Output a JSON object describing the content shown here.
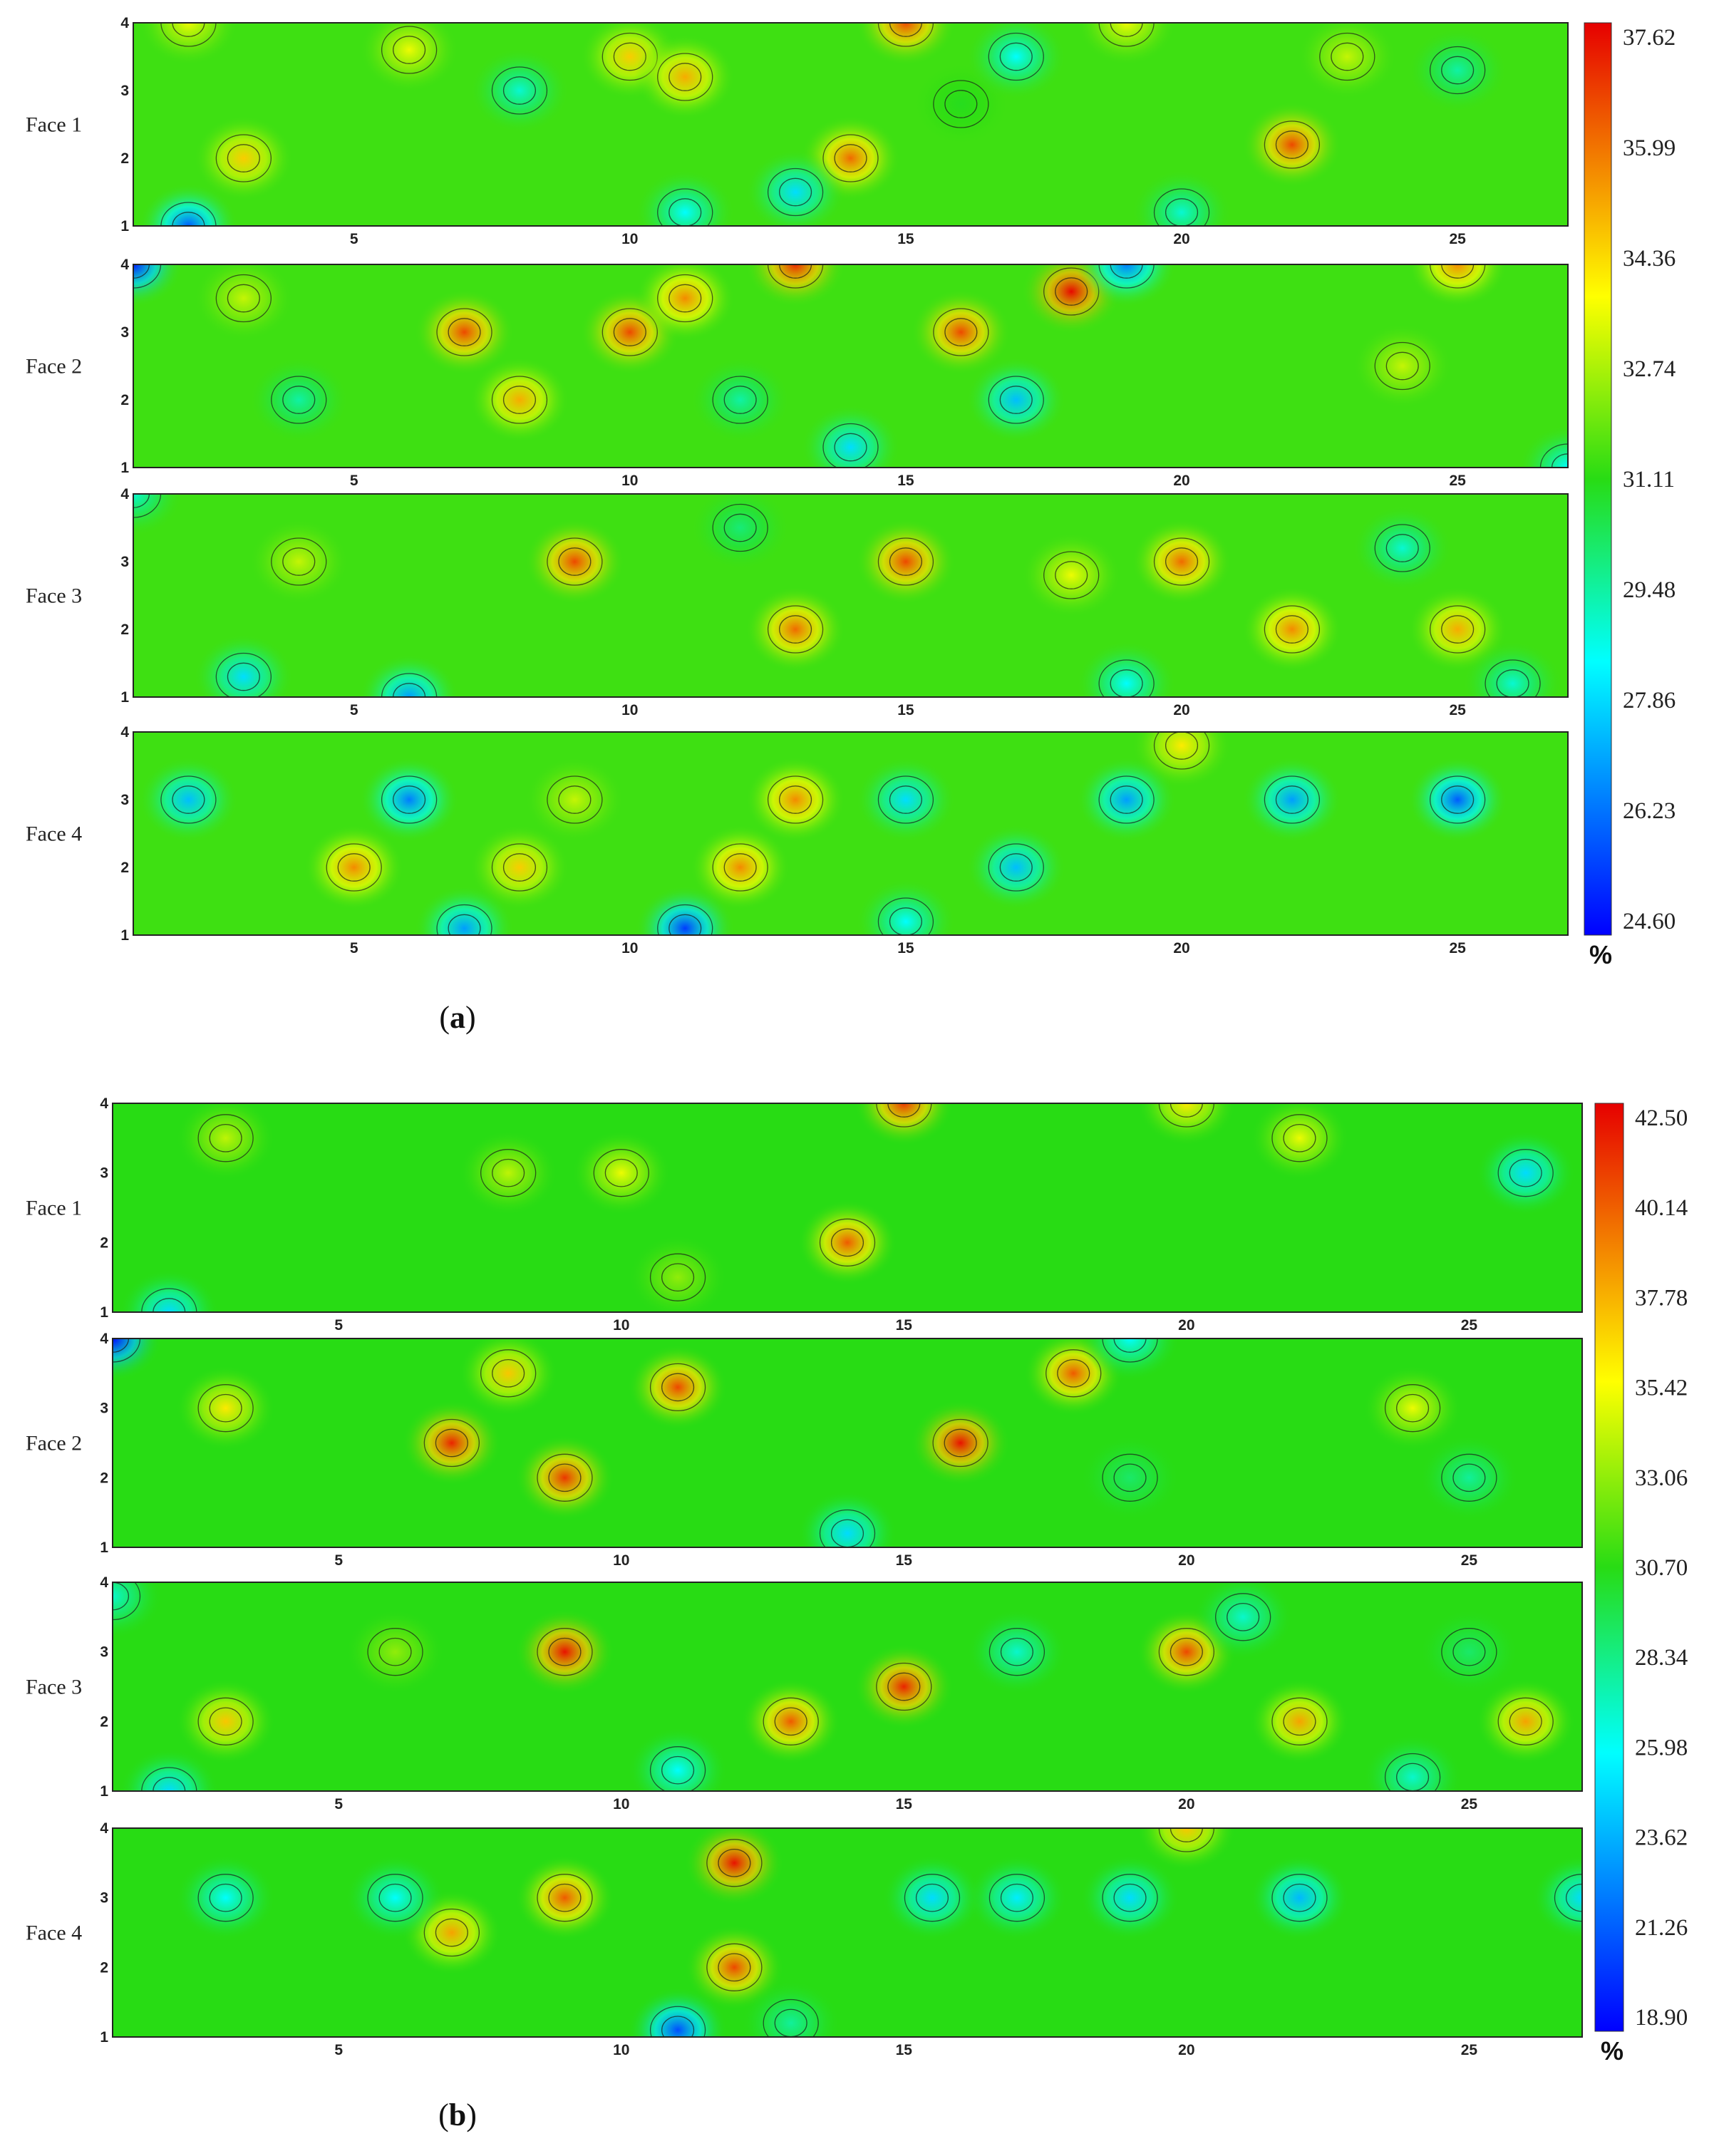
{
  "chart_data": [
    {
      "type": "heatmap",
      "panel_label": "a",
      "unit": "%",
      "x_ticks": [
        5,
        10,
        15,
        20,
        25
      ],
      "y_ticks": [
        1,
        2,
        3,
        4
      ],
      "xlim": [
        1,
        27
      ],
      "ylim": [
        1,
        4
      ],
      "colorbar_ticks": [
        "37.62",
        "35.99",
        "34.36",
        "32.74",
        "31.11",
        "29.48",
        "27.86",
        "26.23",
        "24.60"
      ],
      "vmin": 24.6,
      "vmax": 37.62,
      "faces": [
        {
          "name": "Face 1",
          "hotspots": [
            [
              2,
              4,
              33.5
            ],
            [
              3,
              2,
              34.5
            ],
            [
              6,
              3.6,
              33.5
            ],
            [
              10,
              3.5,
              34.5
            ],
            [
              11,
              3.2,
              35
            ],
            [
              14,
              2,
              36
            ],
            [
              15,
              4,
              36.5
            ],
            [
              16,
              2.8,
              31
            ],
            [
              19,
              4,
              33.5
            ],
            [
              22,
              2.2,
              36.5
            ],
            [
              23,
              3.5,
              33
            ],
            [
              2,
              1,
              26
            ],
            [
              8,
              3,
              29
            ],
            [
              11,
              1.2,
              28.5
            ],
            [
              13,
              1.5,
              28
            ],
            [
              17,
              3.5,
              28.5
            ],
            [
              20,
              1.2,
              29
            ],
            [
              25,
              3.3,
              29.5
            ]
          ]
        },
        {
          "name": "Face 2",
          "hotspots": [
            [
              1,
              4,
              25
            ],
            [
              7,
              3,
              36.5
            ],
            [
              10,
              3,
              36.5
            ],
            [
              11,
              3.5,
              35.5
            ],
            [
              13,
              4,
              37
            ],
            [
              16,
              3,
              36.5
            ],
            [
              18,
              3.6,
              37.5
            ],
            [
              8,
              2,
              35
            ],
            [
              3,
              3.5,
              33
            ],
            [
              25,
              4,
              35.5
            ],
            [
              24,
              2.5,
              33
            ],
            [
              12,
              2,
              29.5
            ],
            [
              14,
              1.3,
              28
            ],
            [
              17,
              2,
              27.5
            ],
            [
              19,
              4,
              26.5
            ],
            [
              4,
              2,
              29.5
            ],
            [
              27,
              1,
              28.5
            ]
          ]
        },
        {
          "name": "Face 3",
          "hotspots": [
            [
              9,
              3,
              36.5
            ],
            [
              13,
              2,
              36
            ],
            [
              15,
              3,
              36.5
            ],
            [
              20,
              3,
              36
            ],
            [
              22,
              2,
              35.5
            ],
            [
              25,
              2,
              35
            ],
            [
              4,
              3,
              33
            ],
            [
              18,
              2.8,
              33.5
            ],
            [
              24,
              3.2,
              29
            ],
            [
              1,
              4,
              29
            ],
            [
              6,
              1,
              27
            ],
            [
              3,
              1.3,
              28
            ],
            [
              19,
              1.2,
              28.5
            ],
            [
              12,
              3.5,
              30
            ],
            [
              26,
              1.2,
              29
            ]
          ]
        },
        {
          "name": "Face 4",
          "hotspots": [
            [
              5,
              2,
              35.5
            ],
            [
              8,
              2,
              34.5
            ],
            [
              12,
              2,
              35.5
            ],
            [
              13,
              3,
              35.5
            ],
            [
              20,
              3.8,
              34
            ],
            [
              9,
              3,
              33
            ],
            [
              6,
              3,
              26.5
            ],
            [
              2,
              3,
              27.5
            ],
            [
              11,
              1.1,
              25.5
            ],
            [
              7,
              1.1,
              27
            ],
            [
              15,
              3,
              28
            ],
            [
              17,
              2,
              27.5
            ],
            [
              19,
              3,
              27
            ],
            [
              22,
              3,
              27
            ],
            [
              25,
              3,
              26
            ],
            [
              15,
              1.2,
              28.5
            ]
          ]
        }
      ]
    },
    {
      "type": "heatmap",
      "panel_label": "b",
      "unit": "%",
      "x_ticks": [
        5,
        10,
        15,
        20,
        25
      ],
      "y_ticks": [
        1,
        2,
        3,
        4
      ],
      "xlim": [
        1,
        27
      ],
      "ylim": [
        1,
        4
      ],
      "colorbar_ticks": [
        "42.50",
        "40.14",
        "37.78",
        "35.42",
        "33.06",
        "30.70",
        "28.34",
        "25.98",
        "23.62",
        "21.26",
        "18.90"
      ],
      "vmin": 18.9,
      "vmax": 42.5,
      "faces": [
        {
          "name": "Face 1",
          "hotspots": [
            [
              14,
              2,
              40
            ],
            [
              15,
              4,
              41
            ],
            [
              10,
              3,
              35
            ],
            [
              20,
              4,
              36
            ],
            [
              3,
              3.5,
              34
            ],
            [
              22,
              3.5,
              35
            ],
            [
              26,
              3,
              25
            ],
            [
              2,
              1,
              25
            ],
            [
              11,
              1.5,
              33
            ],
            [
              8,
              3,
              34
            ]
          ]
        },
        {
          "name": "Face 2",
          "hotspots": [
            [
              7,
              2.5,
              41.5
            ],
            [
              9,
              2,
              41
            ],
            [
              11,
              3.3,
              40.5
            ],
            [
              16,
              2.5,
              42
            ],
            [
              18,
              3.5,
              40
            ],
            [
              8,
              3.5,
              37
            ],
            [
              3,
              3,
              36
            ],
            [
              1,
              4,
              19
            ],
            [
              19,
              2,
              29
            ],
            [
              14,
              1.2,
              25
            ],
            [
              19,
              4,
              26
            ],
            [
              25,
              2,
              28
            ],
            [
              24,
              3,
              35
            ]
          ]
        },
        {
          "name": "Face 3",
          "hotspots": [
            [
              9,
              3,
              42
            ],
            [
              15,
              2.5,
              41.5
            ],
            [
              13,
              2,
              40
            ],
            [
              20,
              3,
              40.5
            ],
            [
              22,
              2,
              38
            ],
            [
              26,
              2,
              38
            ],
            [
              3,
              2,
              37
            ],
            [
              1,
              3.8,
              27
            ],
            [
              2,
              1,
              25
            ],
            [
              11,
              1.3,
              26
            ],
            [
              17,
              3,
              27
            ],
            [
              21,
              3.5,
              27
            ],
            [
              25,
              3,
              29
            ],
            [
              6,
              3,
              33
            ],
            [
              24,
              1.2,
              27
            ]
          ]
        },
        {
          "name": "Face 4",
          "hotspots": [
            [
              12,
              3.5,
              42
            ],
            [
              12,
              2,
              40.5
            ],
            [
              9,
              3,
              40
            ],
            [
              7,
              2.5,
              38
            ],
            [
              20,
              4,
              37
            ],
            [
              3,
              3,
              26
            ],
            [
              6,
              3,
              26
            ],
            [
              11,
              1.1,
              21
            ],
            [
              15.5,
              3,
              25
            ],
            [
              17,
              3,
              25.5
            ],
            [
              19,
              3,
              25
            ],
            [
              22,
              3,
              24
            ],
            [
              27,
              3,
              25
            ],
            [
              13,
              1.2,
              28
            ]
          ]
        }
      ]
    }
  ]
}
